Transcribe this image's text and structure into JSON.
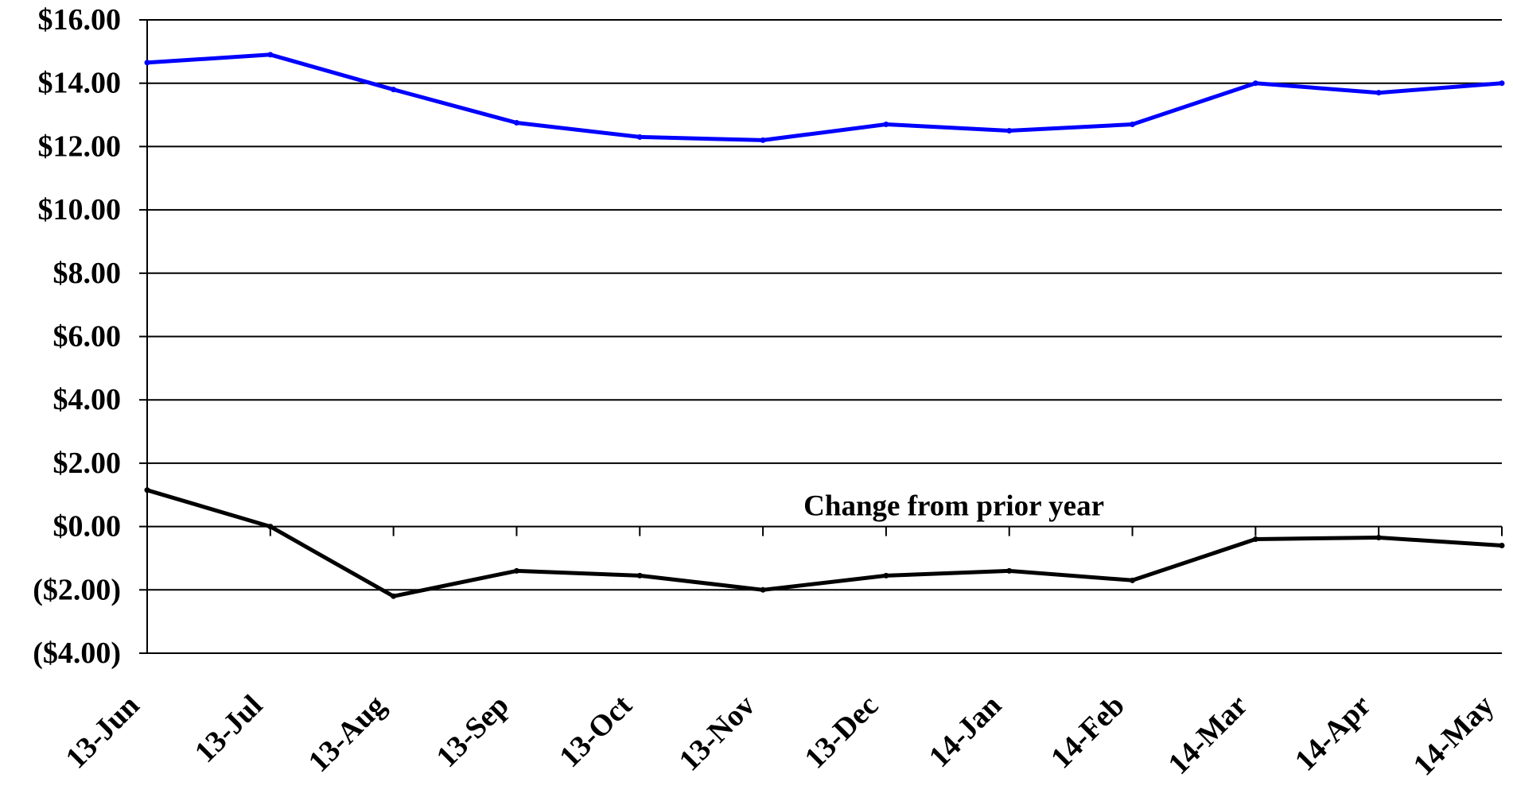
{
  "chart_data": {
    "type": "line",
    "title": "",
    "xlabel": "",
    "ylabel": "",
    "categories": [
      "13-Jun",
      "13-Jul",
      "13-Aug",
      "13-Sep",
      "13-Oct",
      "13-Nov",
      "13-Dec",
      "14-Jan",
      "14-Feb",
      "14-Mar",
      "14-Apr",
      "14-May"
    ],
    "y_tick_labels": [
      "$16.00",
      "$14.00",
      "$12.00",
      "$10.00",
      "$8.00",
      "$6.00",
      "$4.00",
      "$2.00",
      "$0.00",
      "($2.00)",
      "($4.00)"
    ],
    "y_ticks": [
      16,
      14,
      12,
      10,
      8,
      6,
      4,
      2,
      0,
      -2,
      -4
    ],
    "ylim": [
      -4,
      16
    ],
    "grid": true,
    "series": [
      {
        "color": "#0000ff",
        "values": [
          14.65,
          14.9,
          13.8,
          12.75,
          12.3,
          12.2,
          12.7,
          12.5,
          12.7,
          14.0,
          13.7,
          14.0
        ]
      },
      {
        "color": "#000000",
        "values": [
          1.15,
          0.0,
          -2.2,
          -1.4,
          -1.55,
          -2.0,
          -1.55,
          -1.4,
          -1.7,
          -0.4,
          -0.35,
          -0.6
        ]
      }
    ],
    "annotations": [
      {
        "text": "Change from prior year",
        "category": "13-Nov",
        "y": 0.7
      }
    ]
  }
}
